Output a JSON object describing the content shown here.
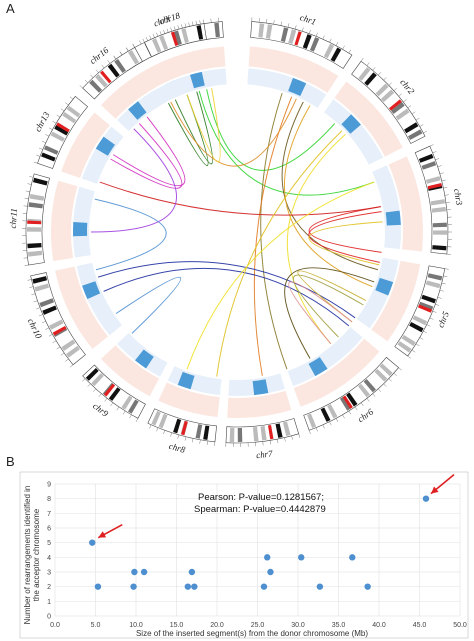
{
  "panel_a": {
    "letter": "A",
    "chromosomes": [
      "chrX",
      "chr1",
      "chr2",
      "chr3",
      "chr5",
      "chr6",
      "chr7",
      "chr8",
      "chr9",
      "chr10",
      "chr11",
      "chr13",
      "chr16",
      "chr18"
    ]
  },
  "panel_b": {
    "letter": "B",
    "stats_line1": "Pearson: P-value=0.1281567;",
    "stats_line2": "Spearman: P-value=0.4442879"
  },
  "colors": {
    "point": "#4e8fd0",
    "arrow": "#e02020",
    "grid": "#e6e6e6",
    "outer_ring": "#fbe7e0",
    "inner_ring": "#e7f0fa",
    "segment": "#4c9ad6"
  },
  "chart_data": {
    "type": "scatter",
    "title": "",
    "xlabel": "Size of the inserted segment(s) from the donor chromosome (Mb)",
    "ylabel": "Number of rearrangements identified in the acceptor chromosome",
    "xlim": [
      0,
      50
    ],
    "ylim": [
      0,
      9
    ],
    "x_ticks": [
      "0.0",
      "5.0",
      "10.0",
      "15.0",
      "20.0",
      "25.0",
      "30.0",
      "35.0",
      "40.0",
      "45.0",
      "50.0"
    ],
    "y_ticks": [
      "0",
      "1",
      "2",
      "3",
      "4",
      "5",
      "6",
      "7",
      "8",
      "9"
    ],
    "grid": true,
    "points": [
      {
        "x": 4.6,
        "y": 5
      },
      {
        "x": 5.3,
        "y": 2
      },
      {
        "x": 9.7,
        "y": 2
      },
      {
        "x": 9.8,
        "y": 3
      },
      {
        "x": 11.0,
        "y": 3
      },
      {
        "x": 16.4,
        "y": 2
      },
      {
        "x": 16.9,
        "y": 3
      },
      {
        "x": 17.2,
        "y": 2
      },
      {
        "x": 25.8,
        "y": 2
      },
      {
        "x": 26.2,
        "y": 4
      },
      {
        "x": 26.6,
        "y": 3
      },
      {
        "x": 30.4,
        "y": 4
      },
      {
        "x": 32.7,
        "y": 2
      },
      {
        "x": 36.7,
        "y": 4
      },
      {
        "x": 38.6,
        "y": 2
      },
      {
        "x": 45.8,
        "y": 8
      }
    ],
    "highlighted_points": [
      {
        "x": 4.6,
        "y": 5
      },
      {
        "x": 45.8,
        "y": 8
      }
    ]
  }
}
